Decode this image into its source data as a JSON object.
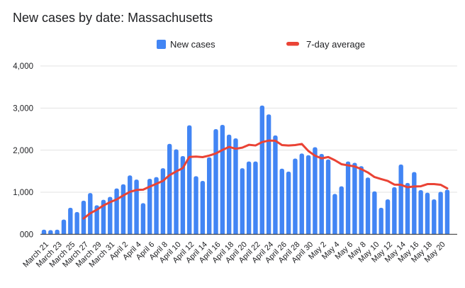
{
  "title": "New cases by date: Massachusetts",
  "legend": [
    {
      "label": "New cases",
      "color": "#4285f4",
      "shape": "square"
    },
    {
      "label": "7-day average",
      "color": "#ea4335",
      "shape": "line"
    }
  ],
  "colors": {
    "bar": "#4285f4",
    "line": "#ea4335",
    "grid": "#e3e3e3",
    "axis": "#404040",
    "text": "#202124",
    "background": "#ffffff"
  },
  "y_axis": {
    "tick_labels": [
      "4,000",
      "3,000",
      "2,000",
      "1,000",
      "000"
    ],
    "tick_values": [
      4000,
      3000,
      2000,
      1000,
      0
    ]
  },
  "x_axis": {
    "label_every": 2,
    "first_label": "March 21",
    "last_label": "May 20"
  },
  "chart_data": {
    "type": "bar",
    "title": "New cases by date: Massachusetts",
    "xlabel": "",
    "ylabel": "",
    "ylim": [
      0,
      4000
    ],
    "grid": true,
    "legend_position": "top",
    "categories": [
      "March 21",
      "March 22",
      "March 23",
      "March 24",
      "March 25",
      "March 26",
      "March 27",
      "March 28",
      "March 29",
      "March 30",
      "March 31",
      "April 1",
      "April 2",
      "April 3",
      "April 4",
      "April 5",
      "April 6",
      "April 7",
      "April 8",
      "April 9",
      "April 10",
      "April 11",
      "April 12",
      "April 13",
      "April 14",
      "April 15",
      "April 16",
      "April 17",
      "April 18",
      "April 19",
      "April 20",
      "April 21",
      "April 22",
      "April 23",
      "April 24",
      "April 25",
      "April 26",
      "April 27",
      "April 28",
      "April 29",
      "April 30",
      "May 1",
      "May 2",
      "May 3",
      "May 4",
      "May 5",
      "May 6",
      "May 7",
      "May 8",
      "May 9",
      "May 10",
      "May 11",
      "May 12",
      "May 13",
      "May 14",
      "May 15",
      "May 16",
      "May 17",
      "May 18",
      "May 19",
      "May 20",
      "May 21"
    ],
    "series": [
      {
        "name": "New cases",
        "type": "bar",
        "color": "#4285f4",
        "values": [
          110,
          100,
          110,
          350,
          630,
          530,
          800,
          980,
          690,
          820,
          890,
          1090,
          1190,
          1400,
          1300,
          740,
          1320,
          1360,
          1570,
          2150,
          2020,
          1860,
          2590,
          1380,
          1270,
          1830,
          2500,
          2600,
          2370,
          2280,
          1570,
          1730,
          1730,
          3060,
          2850,
          2350,
          1560,
          1490,
          1800,
          1920,
          1880,
          2070,
          1910,
          1780,
          960,
          1140,
          1730,
          1700,
          1620,
          1350,
          1020,
          630,
          830,
          1120,
          1660,
          1220,
          1480,
          1050,
          990,
          830,
          1010,
          1060
        ]
      },
      {
        "name": "7-day average",
        "type": "line",
        "color": "#ea4335",
        "values": [
          null,
          null,
          null,
          null,
          null,
          null,
          376,
          500,
          584,
          686,
          763,
          829,
          923,
          1009,
          1054,
          1061,
          1133,
          1200,
          1269,
          1406,
          1494,
          1574,
          1839,
          1847,
          1834,
          1871,
          1921,
          2004,
          2077,
          2033,
          2060,
          2126,
          2111,
          2191,
          2227,
          2224,
          2121,
          2110,
          2120,
          2147,
          1979,
          1867,
          1804,
          1836,
          1760,
          1666,
          1639,
          1613,
          1549,
          1469,
          1360,
          1313,
          1269,
          1181,
          1176,
          1119,
          1137,
          1141,
          1193,
          1193,
          1177,
          1091
        ]
      }
    ]
  }
}
